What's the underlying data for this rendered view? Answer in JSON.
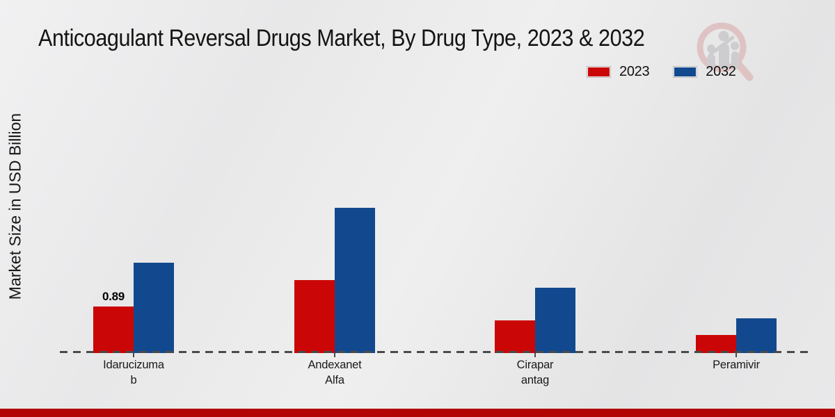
{
  "title": "Anticoagulant Reversal Drugs Market, By Drug Type, 2023 & 2032",
  "y_axis_label": "Market Size in USD Billion",
  "legend": {
    "items": [
      {
        "label": "2023",
        "color": "#cb0606"
      },
      {
        "label": "2032",
        "color": "#12498e"
      }
    ]
  },
  "colors": {
    "series_2023": "#cb0606",
    "series_2032": "#12498e",
    "footer_bar": "#b30404",
    "axis_dash": "#4a4a4a"
  },
  "watermark_icon": "magnifier-bar-chart-logo",
  "chart_data": {
    "type": "bar",
    "title": "Anticoagulant Reversal Drugs Market, By Drug Type, 2023 & 2032",
    "categories": [
      "Idarucizumab",
      "Andexanet Alfa",
      "Ciraparantag",
      "Peramivir"
    ],
    "category_display": [
      "Idarucizuma\nb",
      "Andexanet\nAlfa",
      "Cirapar\nantag",
      "Peramivir"
    ],
    "series": [
      {
        "name": "2023",
        "color": "#cb0606",
        "values": [
          0.89,
          1.39,
          0.62,
          0.34
        ]
      },
      {
        "name": "2032",
        "color": "#12498e",
        "values": [
          1.72,
          2.78,
          1.25,
          0.66
        ]
      }
    ],
    "annotations": [
      {
        "series": "2023",
        "category": "Idarucizumab",
        "text": "0.89"
      }
    ],
    "xlabel": "",
    "ylabel": "Market Size in USD Billion",
    "ylim": [
      0,
      3
    ],
    "grid": false,
    "baseline_style": "dashed",
    "legend_position": "top-right"
  }
}
